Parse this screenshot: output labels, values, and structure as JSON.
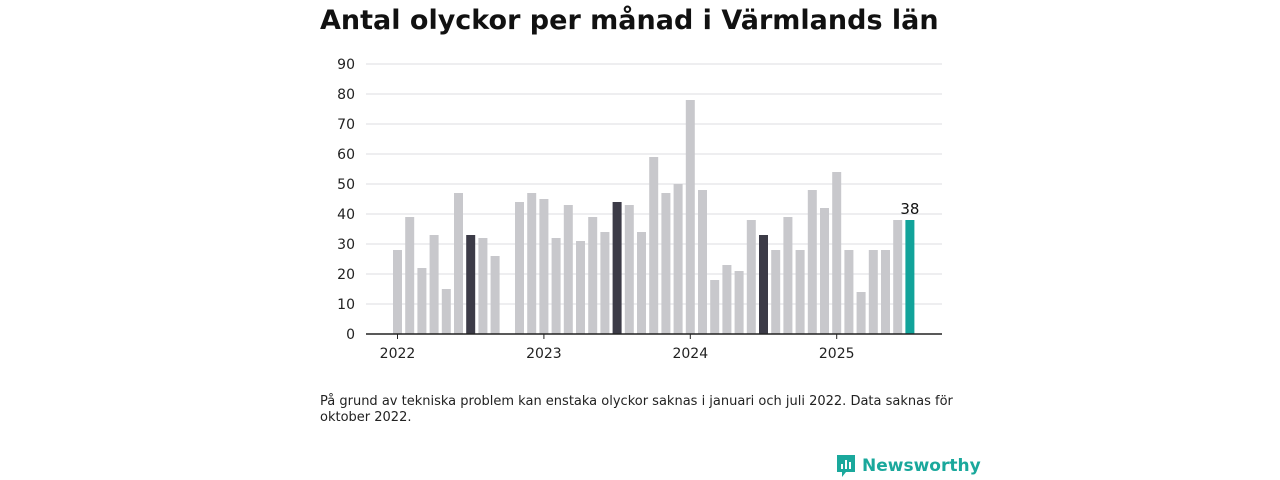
{
  "title": "Antal olyckor per månad i Värmlands län",
  "note": "På grund av tekniska problem kan enstaka olyckor saknas i januari och juli 2022. Data saknas för oktober 2022.",
  "brand": {
    "name": "Newsworthy",
    "color": "#1aa89c"
  },
  "colors": {
    "bar": "#c8c8cc",
    "july": "#3c3b47",
    "latest": "#12a39a",
    "grid": "#dcdce2",
    "axis": "#222222"
  },
  "chart_data": {
    "type": "bar",
    "title": "Antal olyckor per månad i Värmlands län",
    "xlabel": "",
    "ylabel": "",
    "ylim": [
      0,
      90
    ],
    "yticks": [
      0,
      10,
      20,
      30,
      40,
      50,
      60,
      70,
      80,
      90
    ],
    "xtick_labels": [
      "2022",
      "2023",
      "2024",
      "2025"
    ],
    "grid": true,
    "months": [
      "2022-01",
      "2022-02",
      "2022-03",
      "2022-04",
      "2022-05",
      "2022-06",
      "2022-07",
      "2022-08",
      "2022-09",
      "2022-10",
      "2022-11",
      "2022-12",
      "2023-01",
      "2023-02",
      "2023-03",
      "2023-04",
      "2023-05",
      "2023-06",
      "2023-07",
      "2023-08",
      "2023-09",
      "2023-10",
      "2023-11",
      "2023-12",
      "2024-01",
      "2024-02",
      "2024-03",
      "2024-04",
      "2024-05",
      "2024-06",
      "2024-07",
      "2024-08",
      "2024-09",
      "2024-10",
      "2024-11",
      "2024-12",
      "2025-01",
      "2025-02",
      "2025-03",
      "2025-04",
      "2025-05",
      "2025-06",
      "2025-07"
    ],
    "values": [
      28,
      39,
      22,
      33,
      15,
      47,
      33,
      32,
      26,
      null,
      44,
      47,
      45,
      32,
      43,
      31,
      39,
      34,
      44,
      43,
      34,
      59,
      47,
      50,
      78,
      48,
      18,
      23,
      21,
      38,
      33,
      28,
      39,
      28,
      48,
      42,
      54,
      28,
      14,
      28,
      28,
      38,
      38
    ],
    "highlighted_month_label": "juli",
    "latest_value_label": "38"
  }
}
